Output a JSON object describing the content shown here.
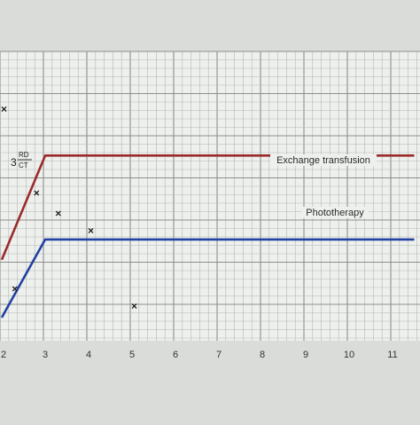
{
  "chart_data": {
    "type": "line",
    "title": "",
    "xlabel": "",
    "ylabel": "",
    "x_ticks": [
      "2",
      "3",
      "4",
      "5",
      "6",
      "7",
      "8",
      "9",
      "10",
      "11"
    ],
    "xlim": [
      2,
      11.5
    ],
    "grid": true,
    "series": [
      {
        "name": "Exchange transfusion",
        "color": "#9a2b2b",
        "points": [
          [
            2,
            0.72
          ],
          [
            3,
            0.36
          ],
          [
            11.5,
            0.36
          ]
        ]
      },
      {
        "name": "Phototherapy",
        "color": "#2240a0",
        "points": [
          [
            2,
            0.92
          ],
          [
            3,
            0.65
          ],
          [
            11.5,
            0.65
          ]
        ]
      }
    ],
    "markers": [
      {
        "symbol": "×",
        "x": 2.05,
        "y": 0.2
      },
      {
        "symbol": "×",
        "x": 2.8,
        "y": 0.49
      },
      {
        "symbol": "×",
        "x": 3.3,
        "y": 0.56
      },
      {
        "symbol": "×",
        "x": 4.05,
        "y": 0.62
      },
      {
        "symbol": "×",
        "x": 2.3,
        "y": 0.82
      },
      {
        "symbol": "×",
        "x": 5.05,
        "y": 0.88
      }
    ],
    "handwriting": {
      "top": "RD",
      "bottom": "CT",
      "prefix": "3"
    }
  }
}
